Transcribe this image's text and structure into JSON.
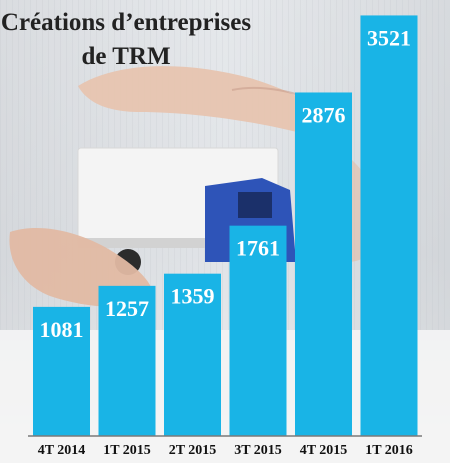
{
  "chart_data": {
    "type": "bar",
    "title": "Créations d’entreprises",
    "subtitle": "de TRM",
    "categories": [
      "4T 2014",
      "1T 2015",
      "2T 2015",
      "3T 2015",
      "4T 2015",
      "1T 2016"
    ],
    "values": [
      1081,
      1257,
      1359,
      1761,
      2876,
      3521
    ],
    "ylim": [
      0,
      3600
    ],
    "grid": false,
    "legend": "none",
    "colors": {
      "bar": "#19B4E6",
      "value_text": "#ffffff",
      "axis": "#7a7a7a"
    }
  }
}
